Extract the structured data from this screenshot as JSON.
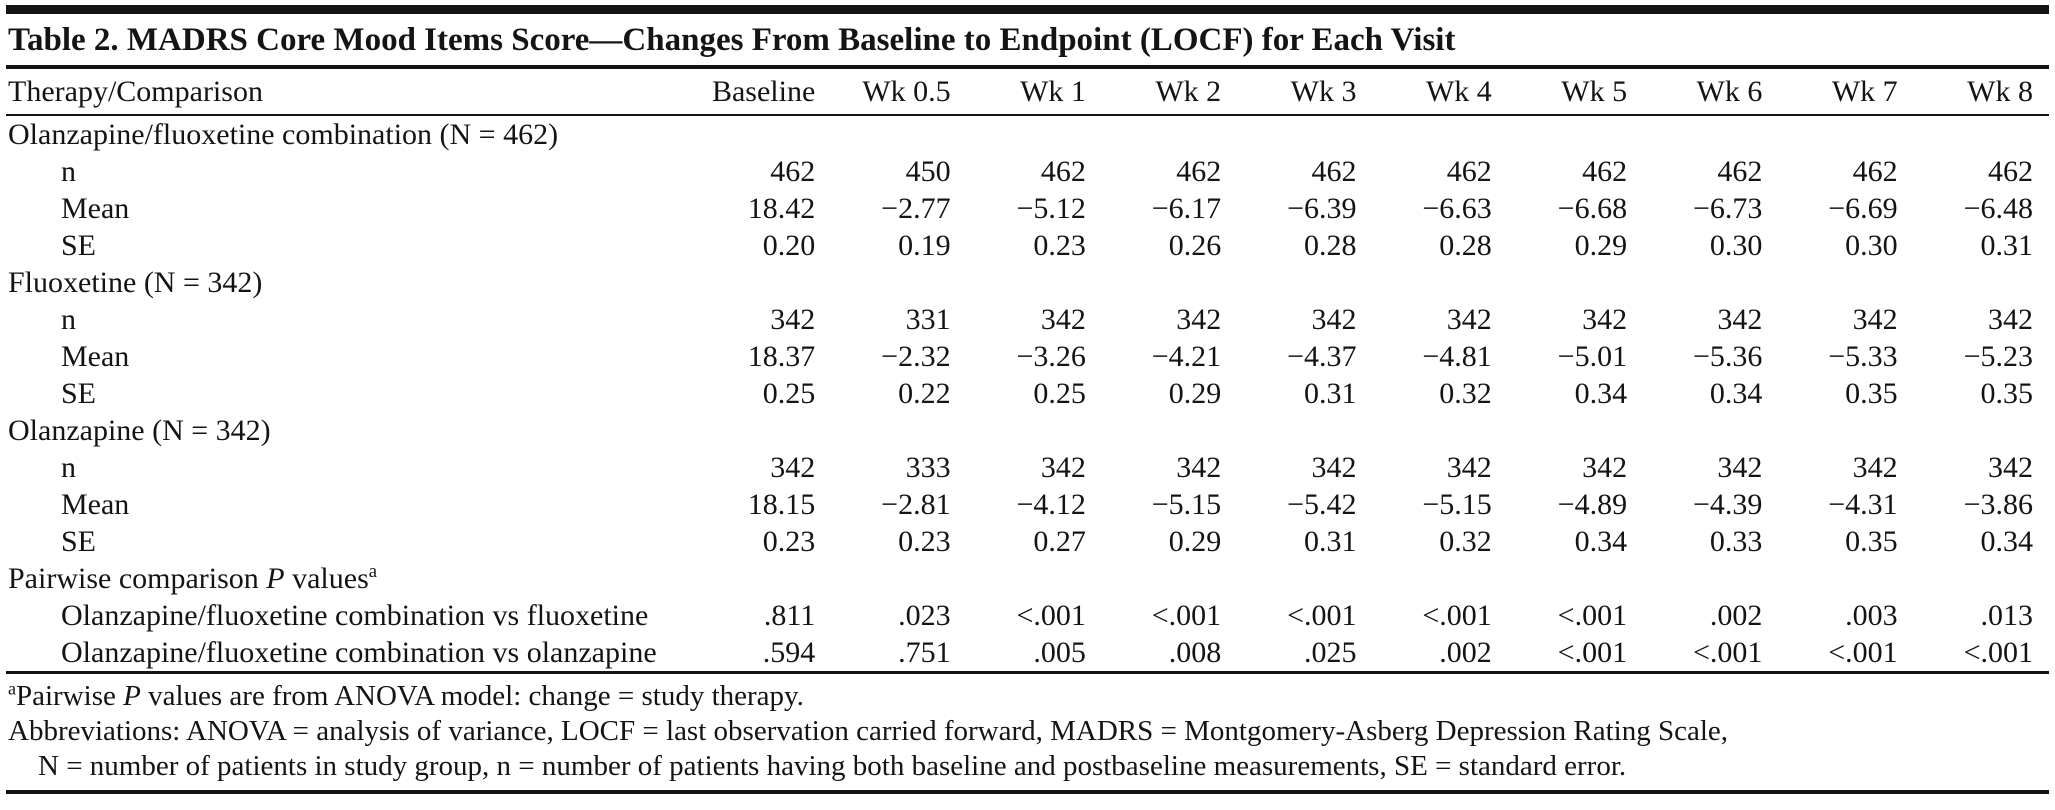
{
  "table": {
    "title": "Table 2. MADRS Core Mood Items Score—Changes From Baseline to Endpoint (LOCF) for Each Visit",
    "columns": [
      "Therapy/Comparison",
      "Baseline",
      "Wk 0.5",
      "Wk 1",
      "Wk 2",
      "Wk 3",
      "Wk 4",
      "Wk 5",
      "Wk 6",
      "Wk 7",
      "Wk 8"
    ],
    "sections": [
      {
        "label_parts": [
          {
            "text": "Olanzapine/fluoxetine combination (N = 462)"
          }
        ],
        "rows": [
          {
            "label": "n",
            "values": [
              "462",
              "450",
              "462",
              "462",
              "462",
              "462",
              "462",
              "462",
              "462",
              "462"
            ]
          },
          {
            "label": "Mean",
            "values": [
              "18.42",
              "−2.77",
              "−5.12",
              "−6.17",
              "−6.39",
              "−6.63",
              "−6.68",
              "−6.73",
              "−6.69",
              "−6.48"
            ]
          },
          {
            "label": "SE",
            "values": [
              "0.20",
              "0.19",
              "0.23",
              "0.26",
              "0.28",
              "0.28",
              "0.29",
              "0.30",
              "0.30",
              "0.31"
            ]
          }
        ]
      },
      {
        "label_parts": [
          {
            "text": "Fluoxetine (N = 342)"
          }
        ],
        "rows": [
          {
            "label": "n",
            "values": [
              "342",
              "331",
              "342",
              "342",
              "342",
              "342",
              "342",
              "342",
              "342",
              "342"
            ]
          },
          {
            "label": "Mean",
            "values": [
              "18.37",
              "−2.32",
              "−3.26",
              "−4.21",
              "−4.37",
              "−4.81",
              "−5.01",
              "−5.36",
              "−5.33",
              "−5.23"
            ]
          },
          {
            "label": "SE",
            "values": [
              "0.25",
              "0.22",
              "0.25",
              "0.29",
              "0.31",
              "0.32",
              "0.34",
              "0.34",
              "0.35",
              "0.35"
            ]
          }
        ]
      },
      {
        "label_parts": [
          {
            "text": "Olanzapine (N = 342)"
          }
        ],
        "rows": [
          {
            "label": "n",
            "values": [
              "342",
              "333",
              "342",
              "342",
              "342",
              "342",
              "342",
              "342",
              "342",
              "342"
            ]
          },
          {
            "label": "Mean",
            "values": [
              "18.15",
              "−2.81",
              "−4.12",
              "−5.15",
              "−5.42",
              "−5.15",
              "−4.89",
              "−4.39",
              "−4.31",
              "−3.86"
            ]
          },
          {
            "label": "SE",
            "values": [
              "0.23",
              "0.23",
              "0.27",
              "0.29",
              "0.31",
              "0.32",
              "0.34",
              "0.33",
              "0.35",
              "0.34"
            ]
          }
        ]
      },
      {
        "label_parts": [
          {
            "text": "Pairwise comparison "
          },
          {
            "text": "P",
            "italic": true
          },
          {
            "text": " values"
          },
          {
            "text": "a",
            "sup": true
          }
        ],
        "rows": [
          {
            "label": "Olanzapine/fluoxetine combination vs fluoxetine",
            "values": [
              ".811",
              ".023",
              "<.001",
              "<.001",
              "<.001",
              "<.001",
              "<.001",
              ".002",
              ".003",
              ".013"
            ]
          },
          {
            "label": "Olanzapine/fluoxetine combination vs olanzapine",
            "values": [
              ".594",
              ".751",
              ".005",
              ".008",
              ".025",
              ".002",
              "<.001",
              "<.001",
              "<.001",
              "<.001"
            ]
          }
        ]
      }
    ],
    "footnotes": {
      "a": {
        "sup": "a",
        "pre": "Pairwise ",
        "italic": "P",
        "post": " values are from ANOVA model: change = study therapy."
      },
      "abbrev_line1": "Abbreviations: ANOVA = analysis of variance, LOCF = last observation carried forward, MADRS = Montgomery-Asberg Depression Rating Scale,",
      "abbrev_line2": "N = number of patients in study group, n = number of patients having both baseline and postbaseline measurements, SE = standard error."
    }
  }
}
